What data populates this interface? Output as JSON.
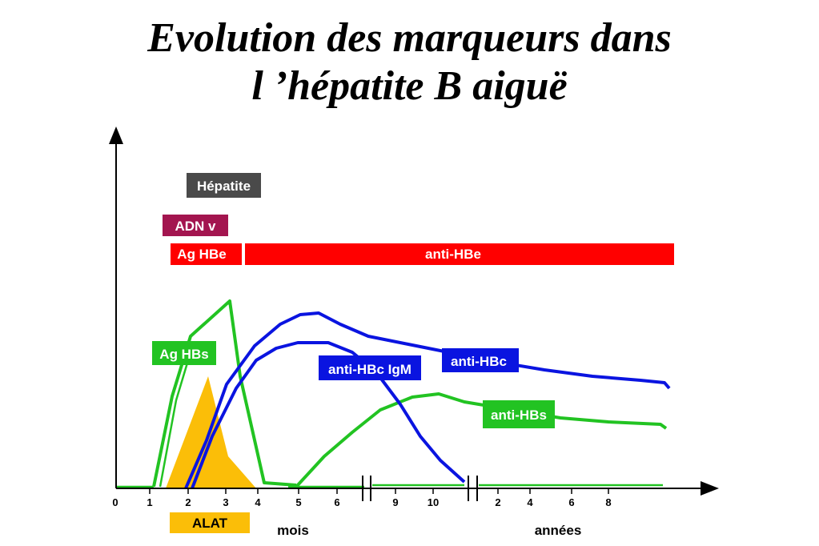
{
  "title": {
    "line1": "Evolution des marqueurs dans",
    "line2": "l ’hépatite B aiguë"
  },
  "labels": {
    "hepatite": "Hépatite",
    "adn": "ADN v",
    "ag_hbe": "Ag HBe",
    "anti_hbe": "anti-HBe",
    "ag_hbs": "Ag HBs",
    "anti_hbc_igm": "anti-HBc IgM",
    "anti_hbc": "anti-HBc",
    "anti_hbs": "anti-HBs",
    "alat": "ALAT"
  },
  "axis": {
    "months_caption": "mois",
    "years_caption": "années",
    "month_ticks": [
      "0",
      "1",
      "2",
      "3",
      "4",
      "5",
      "6",
      "9",
      "10"
    ],
    "year_ticks": [
      "2",
      "4",
      "6",
      "8"
    ]
  },
  "colors": {
    "hepatite": "#4a4a4a",
    "adn": "#a3154f",
    "ag_hbe": "#ff0000",
    "anti_hbe": "#ff0000",
    "green": "#22c322",
    "blue": "#0a14e0",
    "alat": "#fbbe08",
    "axis": "#000000"
  }
}
